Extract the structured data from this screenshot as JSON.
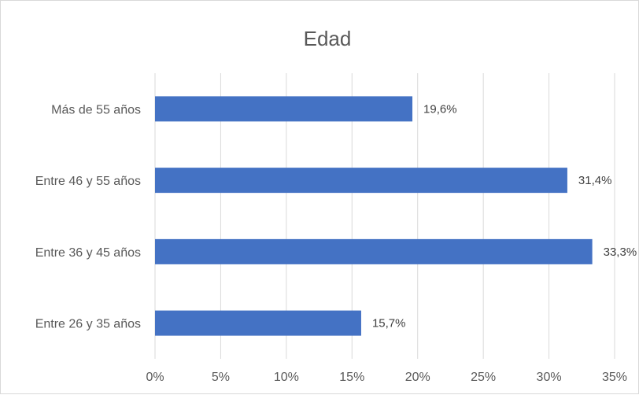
{
  "chart_data": {
    "type": "bar",
    "orientation": "horizontal",
    "title": "Edad",
    "categories": [
      "Entre 26 y 35 años",
      "Entre 36 y 45 años",
      "Entre 46 y 55 años",
      "Más de 55 años"
    ],
    "values": [
      15.7,
      33.3,
      31.4,
      19.6
    ],
    "data_labels": [
      "15,7%",
      "33,3%",
      "31,4%",
      "19,6%"
    ],
    "x_ticks": [
      "0%",
      "5%",
      "10%",
      "15%",
      "20%",
      "25%",
      "30%",
      "35%"
    ],
    "xlim": [
      0,
      35
    ],
    "xlabel": "",
    "ylabel": "",
    "grid": true,
    "legend": "none",
    "bar_color": "#4472c4"
  }
}
